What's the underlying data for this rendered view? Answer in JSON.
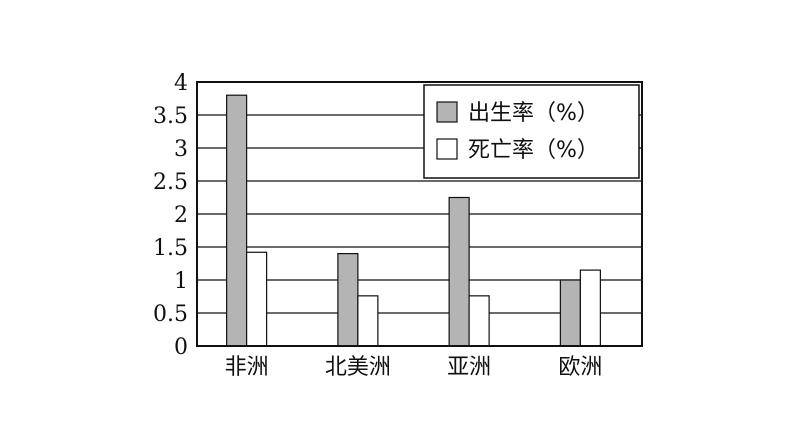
{
  "chart_data": {
    "type": "bar",
    "categories": [
      "非洲",
      "北美洲",
      "亚洲",
      "欧洲"
    ],
    "series": [
      {
        "name": "出生率（%）",
        "values": [
          3.8,
          1.4,
          2.25,
          1.0
        ],
        "color": "#b4b4b4"
      },
      {
        "name": "死亡率（%）",
        "values": [
          1.42,
          0.76,
          0.76,
          1.15
        ],
        "color": "#ffffff"
      }
    ],
    "ylim": [
      0,
      4
    ],
    "yticks": [
      "0",
      "0.5",
      "1",
      "1.5",
      "2",
      "2.5",
      "3",
      "3.5",
      "4"
    ],
    "grid": true,
    "legend_position": "top-right",
    "title": "",
    "xlabel": "",
    "ylabel": ""
  }
}
